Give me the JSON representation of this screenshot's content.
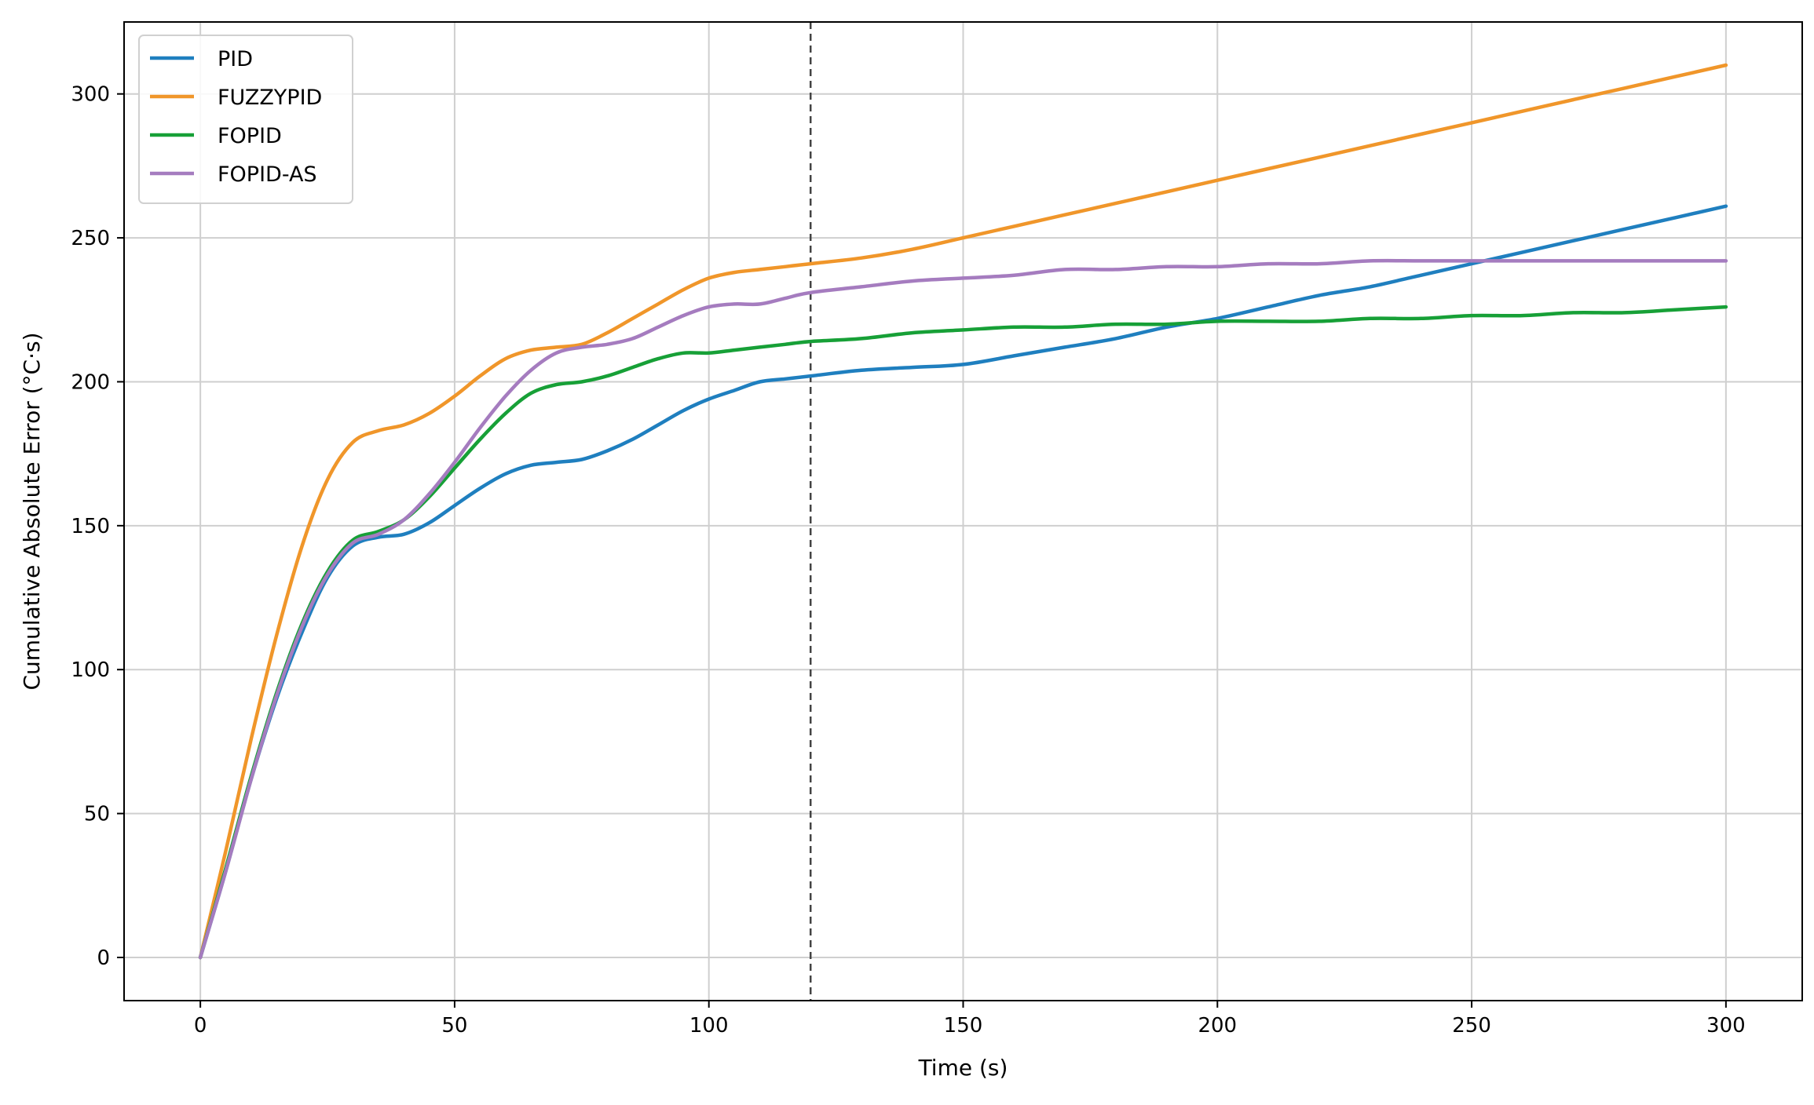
{
  "chart_data": {
    "type": "line",
    "xlabel": "Time (s)",
    "ylabel": "Cumulative Absolute Error (°C·s)",
    "xlim": [
      -15,
      315
    ],
    "ylim": [
      -15,
      325
    ],
    "xticks": [
      0,
      50,
      100,
      150,
      200,
      250,
      300
    ],
    "yticks": [
      0,
      50,
      100,
      150,
      200,
      250,
      300
    ],
    "grid": true,
    "legend_position": "top-left",
    "vline": {
      "x": 120,
      "style": "dashed",
      "color": "#444444"
    },
    "series": [
      {
        "name": "PID",
        "color": "#1f7fbf",
        "x": [
          0,
          5,
          10,
          15,
          20,
          25,
          30,
          35,
          40,
          45,
          50,
          55,
          60,
          65,
          70,
          75,
          80,
          85,
          90,
          95,
          100,
          105,
          110,
          115,
          120,
          130,
          140,
          150,
          160,
          170,
          180,
          190,
          200,
          210,
          220,
          230,
          240,
          250,
          260,
          270,
          280,
          290,
          300
        ],
        "y": [
          0,
          30,
          62,
          90,
          113,
          132,
          143,
          146,
          147,
          151,
          157,
          163,
          168,
          171,
          172,
          173,
          176,
          180,
          185,
          190,
          194,
          197,
          200,
          201,
          202,
          204,
          205,
          206,
          209,
          212,
          215,
          219,
          222,
          226,
          230,
          233,
          237,
          241,
          245,
          249,
          253,
          257,
          261
        ]
      },
      {
        "name": "FUZZYPID",
        "color": "#f0962a",
        "x": [
          0,
          5,
          10,
          15,
          20,
          25,
          30,
          35,
          40,
          45,
          50,
          55,
          60,
          65,
          70,
          75,
          80,
          85,
          90,
          95,
          100,
          105,
          110,
          115,
          120,
          130,
          140,
          150,
          160,
          170,
          180,
          190,
          200,
          210,
          220,
          230,
          240,
          250,
          260,
          270,
          280,
          290,
          300
        ],
        "y": [
          0,
          37,
          76,
          112,
          143,
          166,
          179,
          183,
          185,
          189,
          195,
          202,
          208,
          211,
          212,
          213,
          217,
          222,
          227,
          232,
          236,
          238,
          239,
          240,
          241,
          243,
          246,
          250,
          254,
          258,
          262,
          266,
          270,
          274,
          278,
          282,
          286,
          290,
          294,
          298,
          302,
          306,
          310
        ]
      },
      {
        "name": "FOPID",
        "color": "#17a037",
        "x": [
          0,
          5,
          10,
          15,
          20,
          25,
          30,
          35,
          40,
          45,
          50,
          55,
          60,
          65,
          70,
          75,
          80,
          85,
          90,
          95,
          100,
          105,
          110,
          115,
          120,
          130,
          140,
          150,
          160,
          170,
          180,
          190,
          200,
          210,
          220,
          230,
          240,
          250,
          260,
          270,
          280,
          290,
          300
        ],
        "y": [
          0,
          31,
          63,
          92,
          116,
          134,
          145,
          148,
          152,
          160,
          170,
          180,
          189,
          196,
          199,
          200,
          202,
          205,
          208,
          210,
          210,
          211,
          212,
          213,
          214,
          215,
          217,
          218,
          219,
          219,
          220,
          220,
          221,
          221,
          221,
          222,
          222,
          223,
          223,
          224,
          224,
          225,
          226
        ]
      },
      {
        "name": "FOPID-AS",
        "color": "#a57cbf",
        "x": [
          0,
          5,
          10,
          15,
          20,
          25,
          30,
          35,
          40,
          45,
          50,
          55,
          60,
          65,
          70,
          75,
          80,
          85,
          90,
          95,
          100,
          105,
          110,
          115,
          120,
          130,
          140,
          150,
          160,
          170,
          180,
          190,
          200,
          210,
          220,
          230,
          240,
          250,
          260,
          270,
          280,
          290,
          300
        ],
        "y": [
          0,
          30,
          62,
          91,
          115,
          133,
          144,
          147,
          152,
          161,
          172,
          184,
          195,
          204,
          210,
          212,
          213,
          215,
          219,
          223,
          226,
          227,
          227,
          229,
          231,
          233,
          235,
          236,
          237,
          239,
          239,
          240,
          240,
          241,
          241,
          242,
          242,
          242,
          242,
          242,
          242,
          242,
          242
        ]
      }
    ]
  }
}
